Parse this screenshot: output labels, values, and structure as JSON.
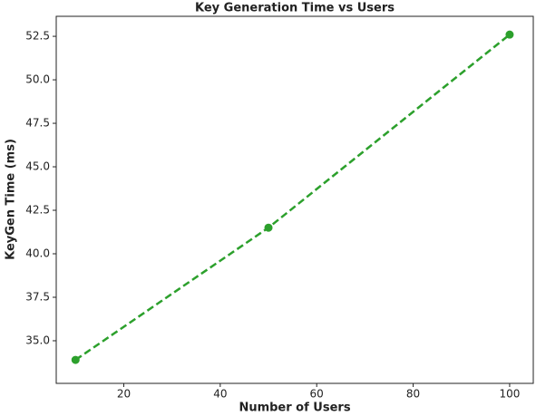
{
  "chart_data": {
    "type": "line",
    "title": "Key Generation Time vs Users",
    "x_label": "Number of Users",
    "y_label": "KeyGen Time (ms)",
    "x": [
      10,
      50,
      100
    ],
    "series": [
      {
        "name": "KeyGen Time",
        "color": "#2ca02c",
        "values": [
          33.9,
          41.5,
          52.6
        ]
      }
    ],
    "xlim": [
      6,
      104.9
    ],
    "xticks": [
      20,
      40,
      60,
      80,
      100
    ],
    "ylim": [
      32.55,
      53.65
    ],
    "yticks": [
      {
        "value": 35,
        "label": "35.0"
      },
      37.5,
      {
        "value": 40,
        "label": "40.0"
      },
      42.5,
      {
        "value": 45,
        "label": "45.0"
      },
      47.5,
      {
        "value": 50,
        "label": "50.0"
      },
      52.5
    ]
  }
}
